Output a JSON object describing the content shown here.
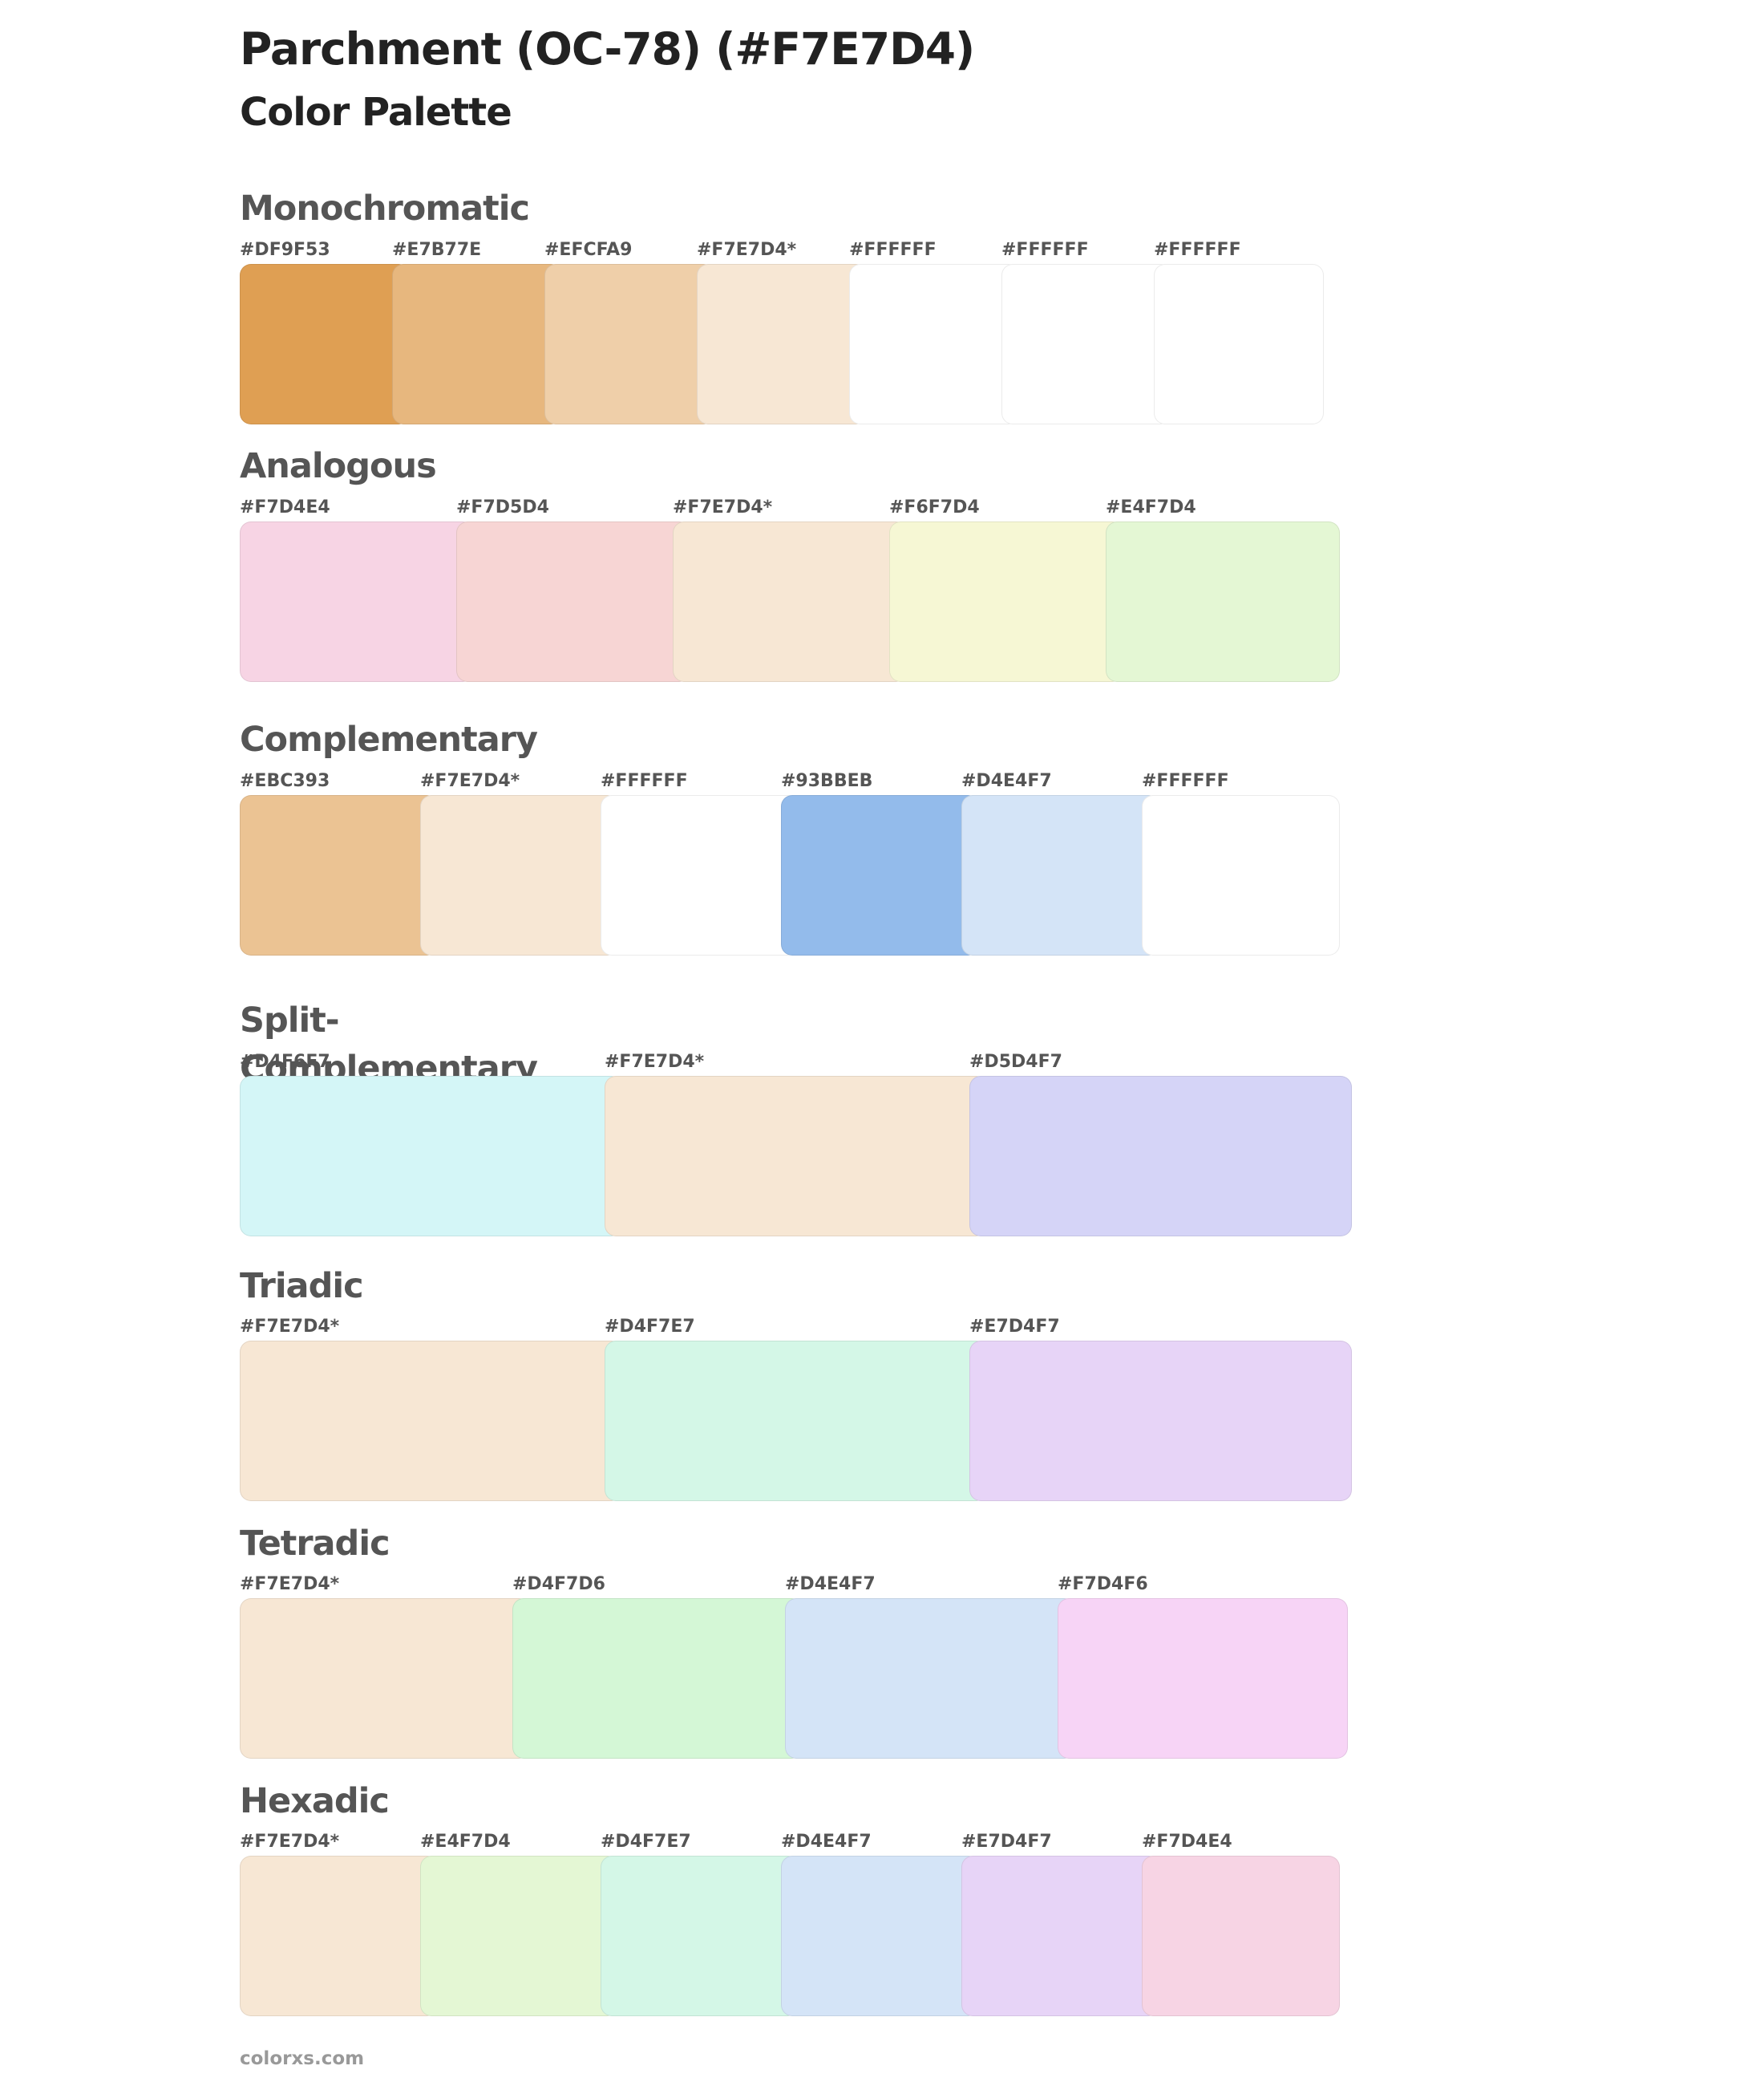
{
  "header": {
    "title": "Parchment (OC-78) (#F7E7D4)",
    "subtitle": "Color Palette"
  },
  "palettes": [
    {
      "name": "Monochromatic",
      "swatches": [
        {
          "label": "#DF9F53",
          "color": "#DF9F53"
        },
        {
          "label": "#E7B77E",
          "color": "#E7B77E"
        },
        {
          "label": "#EFCFA9",
          "color": "#EFCFA9"
        },
        {
          "label": "#F7E7D4*",
          "color": "#F7E7D4"
        },
        {
          "label": "#FFFFFF",
          "color": "#FFFFFF"
        },
        {
          "label": "#FFFFFF",
          "color": "#FFFFFF"
        },
        {
          "label": "#FFFFFF",
          "color": "#FFFFFF"
        }
      ]
    },
    {
      "name": "Analogous",
      "swatches": [
        {
          "label": "#F7D4E4",
          "color": "#F7D4E4"
        },
        {
          "label": "#F7D5D4",
          "color": "#F7D5D4"
        },
        {
          "label": "#F7E7D4*",
          "color": "#F7E7D4"
        },
        {
          "label": "#F6F7D4",
          "color": "#F6F7D4"
        },
        {
          "label": "#E4F7D4",
          "color": "#E4F7D4"
        }
      ]
    },
    {
      "name": "Complementary",
      "swatches": [
        {
          "label": "#EBC393",
          "color": "#EBC393"
        },
        {
          "label": "#F7E7D4*",
          "color": "#F7E7D4"
        },
        {
          "label": "#FFFFFF",
          "color": "#FFFFFF"
        },
        {
          "label": "#93BBEB",
          "color": "#93BBEB"
        },
        {
          "label": "#D4E4F7",
          "color": "#D4E4F7"
        },
        {
          "label": "#FFFFFF",
          "color": "#FFFFFF"
        }
      ]
    },
    {
      "name": "Split-Complementary",
      "swatches": [
        {
          "label": "#D4F6F7",
          "color": "#D4F6F7"
        },
        {
          "label": "#F7E7D4*",
          "color": "#F7E7D4"
        },
        {
          "label": "#D5D4F7",
          "color": "#D5D4F7"
        }
      ]
    },
    {
      "name": "Triadic",
      "swatches": [
        {
          "label": "#F7E7D4*",
          "color": "#F7E7D4"
        },
        {
          "label": "#D4F7E7",
          "color": "#D4F7E7"
        },
        {
          "label": "#E7D4F7",
          "color": "#E7D4F7"
        }
      ]
    },
    {
      "name": "Tetradic",
      "swatches": [
        {
          "label": "#F7E7D4*",
          "color": "#F7E7D4"
        },
        {
          "label": "#D4F7D6",
          "color": "#D4F7D6"
        },
        {
          "label": "#D4E4F7",
          "color": "#D4E4F7"
        },
        {
          "label": "#F7D4F6",
          "color": "#F7D4F6"
        }
      ]
    },
    {
      "name": "Hexadic",
      "swatches": [
        {
          "label": "#F7E7D4*",
          "color": "#F7E7D4"
        },
        {
          "label": "#E4F7D4",
          "color": "#E4F7D4"
        },
        {
          "label": "#D4F7E7",
          "color": "#D4F7E7"
        },
        {
          "label": "#D4E4F7",
          "color": "#D4E4F7"
        },
        {
          "label": "#E7D4F7",
          "color": "#E7D4F7"
        },
        {
          "label": "#F7D4E4",
          "color": "#F7D4E4"
        }
      ]
    }
  ],
  "footer": {
    "text": "colorxs.com"
  }
}
